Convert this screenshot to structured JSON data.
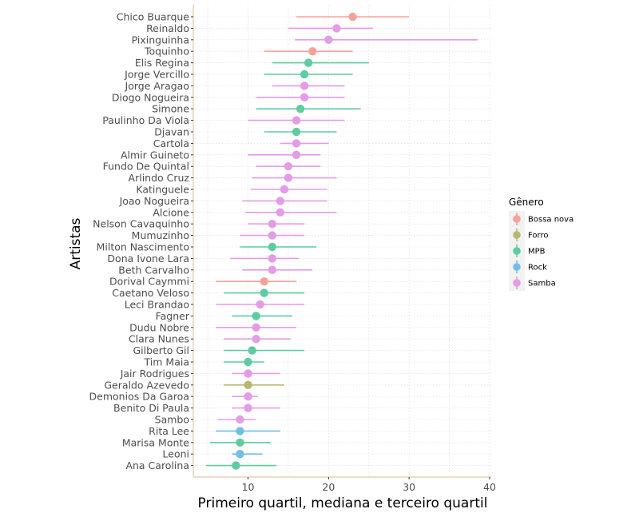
{
  "chart_data": {
    "type": "pointrange",
    "orientation": "horizontal",
    "xlabel": "Primeiro quartil, mediana e terceiro quartil",
    "ylabel": "Artistas",
    "xlim": [
      3.2,
      40.2
    ],
    "xticks": [
      10,
      20,
      30,
      40
    ],
    "grid": true,
    "legend": {
      "title": "Gênero",
      "position": "right"
    },
    "genres": [
      {
        "name": "Bossa nova",
        "color": "#F8A19A"
      },
      {
        "name": "Forro",
        "color": "#B9B76F"
      },
      {
        "name": "MPB",
        "color": "#5ECBA1"
      },
      {
        "name": "Rock",
        "color": "#72BEE8"
      },
      {
        "name": "Samba",
        "color": "#E39CE5"
      }
    ],
    "points": [
      {
        "artist": "Chico Buarque",
        "genre": "Bossa nova",
        "q1": 16,
        "median": 23,
        "q3": 30
      },
      {
        "artist": "Reinaldo",
        "genre": "Samba",
        "q1": 15,
        "median": 21,
        "q3": 25.5
      },
      {
        "artist": "Pixinguinha",
        "genre": "Samba",
        "q1": 15.8,
        "median": 20,
        "q3": 38.5
      },
      {
        "artist": "Toquinho",
        "genre": "Bossa nova",
        "q1": 12,
        "median": 18,
        "q3": 23
      },
      {
        "artist": "Elis Regina",
        "genre": "MPB",
        "q1": 13,
        "median": 17.5,
        "q3": 25
      },
      {
        "artist": "Jorge Vercillo",
        "genre": "MPB",
        "q1": 12,
        "median": 17,
        "q3": 23
      },
      {
        "artist": "Jorge Aragao",
        "genre": "Samba",
        "q1": 13,
        "median": 17,
        "q3": 22
      },
      {
        "artist": "Diogo Nogueira",
        "genre": "Samba",
        "q1": 11,
        "median": 17,
        "q3": 22
      },
      {
        "artist": "Simone",
        "genre": "MPB",
        "q1": 11,
        "median": 16.5,
        "q3": 24
      },
      {
        "artist": "Paulinho Da Viola",
        "genre": "Samba",
        "q1": 10,
        "median": 16,
        "q3": 22
      },
      {
        "artist": "Djavan",
        "genre": "MPB",
        "q1": 12,
        "median": 16,
        "q3": 21
      },
      {
        "artist": "Cartola",
        "genre": "Samba",
        "q1": 14,
        "median": 16,
        "q3": 20
      },
      {
        "artist": "Almir Guineto",
        "genre": "Samba",
        "q1": 10,
        "median": 16,
        "q3": 19
      },
      {
        "artist": "Fundo De Quintal",
        "genre": "Samba",
        "q1": 11,
        "median": 15,
        "q3": 19
      },
      {
        "artist": "Arlindo Cruz",
        "genre": "Samba",
        "q1": 10.5,
        "median": 15,
        "q3": 21
      },
      {
        "artist": "Katinguele",
        "genre": "Samba",
        "q1": 10.3,
        "median": 14.5,
        "q3": 19.8
      },
      {
        "artist": "Joao Nogueira",
        "genre": "Samba",
        "q1": 9.3,
        "median": 14,
        "q3": 19.8
      },
      {
        "artist": "Alcione",
        "genre": "Samba",
        "q1": 9.7,
        "median": 14,
        "q3": 21
      },
      {
        "artist": "Nelson Cavaquinho",
        "genre": "Samba",
        "q1": 10,
        "median": 13,
        "q3": 17
      },
      {
        "artist": "Mumuzinho",
        "genre": "Samba",
        "q1": 9,
        "median": 13,
        "q3": 17
      },
      {
        "artist": "Milton Nascimento",
        "genre": "MPB",
        "q1": 9,
        "median": 13,
        "q3": 18.5
      },
      {
        "artist": "Dona Ivone Lara",
        "genre": "Samba",
        "q1": 7.8,
        "median": 13,
        "q3": 16.3
      },
      {
        "artist": "Beth Carvalho",
        "genre": "Samba",
        "q1": 9.3,
        "median": 13,
        "q3": 18
      },
      {
        "artist": "Dorival Caymmi",
        "genre": "Bossa nova",
        "q1": 6,
        "median": 12,
        "q3": 16
      },
      {
        "artist": "Caetano Veloso",
        "genre": "MPB",
        "q1": 7,
        "median": 12,
        "q3": 17
      },
      {
        "artist": "Leci Brandao",
        "genre": "Samba",
        "q1": 6,
        "median": 11.5,
        "q3": 17
      },
      {
        "artist": "Fagner",
        "genre": "MPB",
        "q1": 8,
        "median": 11,
        "q3": 15.5
      },
      {
        "artist": "Dudu Nobre",
        "genre": "Samba",
        "q1": 6,
        "median": 11,
        "q3": 16
      },
      {
        "artist": "Clara Nunes",
        "genre": "Samba",
        "q1": 7,
        "median": 11,
        "q3": 15.3
      },
      {
        "artist": "Gilberto Gil",
        "genre": "MPB",
        "q1": 7,
        "median": 10.5,
        "q3": 17
      },
      {
        "artist": "Tim Maia",
        "genre": "MPB",
        "q1": 7,
        "median": 10,
        "q3": 12
      },
      {
        "artist": "Jair Rodrigues",
        "genre": "Samba",
        "q1": 8,
        "median": 10,
        "q3": 14
      },
      {
        "artist": "Geraldo Azevedo",
        "genre": "Forro",
        "q1": 7,
        "median": 10,
        "q3": 14.5
      },
      {
        "artist": "Demonios Da Garoa",
        "genre": "Samba",
        "q1": 8,
        "median": 10,
        "q3": 11.2
      },
      {
        "artist": "Benito Di Paula",
        "genre": "Samba",
        "q1": 8,
        "median": 10,
        "q3": 14
      },
      {
        "artist": "Sambo",
        "genre": "Samba",
        "q1": 6.2,
        "median": 9,
        "q3": 11
      },
      {
        "artist": "Rita Lee",
        "genre": "Rock",
        "q1": 6,
        "median": 9,
        "q3": 14
      },
      {
        "artist": "Marisa Monte",
        "genre": "MPB",
        "q1": 5.3,
        "median": 9,
        "q3": 12.8
      },
      {
        "artist": "Leoni",
        "genre": "Rock",
        "q1": 8,
        "median": 9,
        "q3": 11.8
      },
      {
        "artist": "Ana Carolina",
        "genre": "MPB",
        "q1": 4.8,
        "median": 8.5,
        "q3": 13.5
      }
    ]
  }
}
